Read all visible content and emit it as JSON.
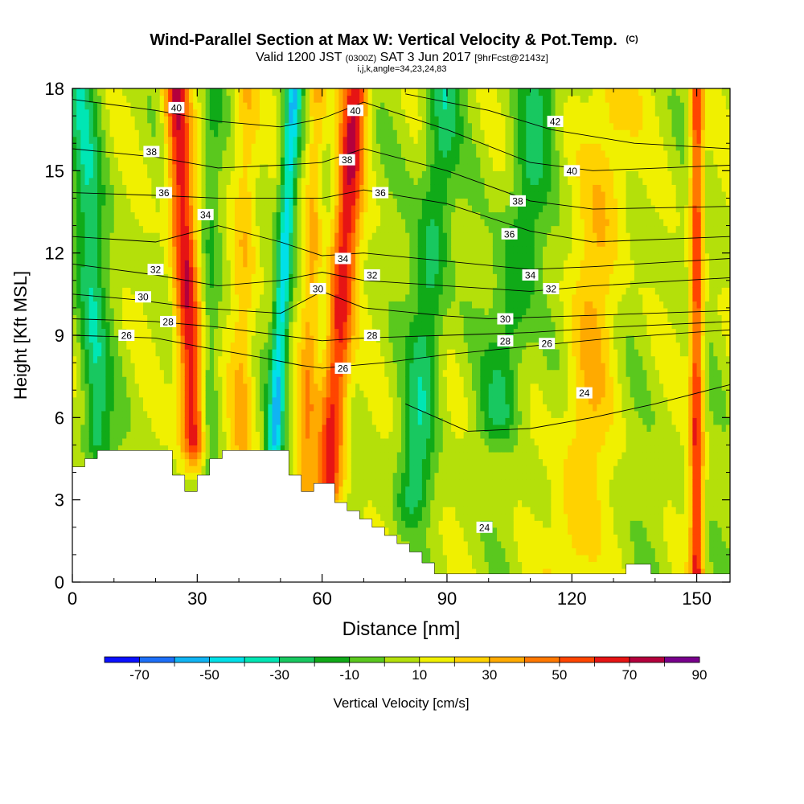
{
  "chart_data": {
    "type": "heatmap",
    "title": "Wind-Parallel Section at Max W: Vertical Velocity & Pot.Temp.",
    "title_mark": "(C)",
    "subtitle_parts": [
      "Valid 1200 JST ",
      "(0300Z)",
      " SAT 3 Jun 2017 ",
      "[9hrFcst@2143z]"
    ],
    "subtitle2": "i,j,k,angle=34,23,24,83",
    "xlabel": "Distance [nm]",
    "ylabel": "Height [Kft MSL]",
    "xlim": [
      0,
      158
    ],
    "ylim": [
      0,
      18
    ],
    "xticks": [
      0,
      30,
      60,
      90,
      120,
      150
    ],
    "yticks": [
      0,
      3,
      6,
      9,
      12,
      15,
      18
    ],
    "colorbar": {
      "label": "Vertical Velocity [cm/s]",
      "ticks": [
        -70,
        -50,
        -30,
        -10,
        10,
        30,
        50,
        70,
        90
      ],
      "bins": [
        -80,
        -70,
        -60,
        -50,
        -40,
        -30,
        -20,
        -10,
        0,
        10,
        20,
        30,
        40,
        50,
        60,
        70,
        80,
        90
      ],
      "colors": [
        "#0a10ff",
        "#1d6ff8",
        "#10b4f3",
        "#00e0e8",
        "#00e6b4",
        "#18c860",
        "#10aa18",
        "#5ac81e",
        "#b4e00a",
        "#f0f000",
        "#ffd200",
        "#ffaa00",
        "#ff7800",
        "#ff4500",
        "#e61414",
        "#b4003c",
        "#78008c"
      ]
    },
    "updrafts": [
      {
        "x": 28,
        "w": 3.0,
        "amp": 65,
        "tilt": -0.35,
        "zmin": 5.0
      },
      {
        "x": 64,
        "w": 3.2,
        "amp": 60,
        "tilt": 0.45,
        "zmin": 3.5
      },
      {
        "x": 57,
        "w": 2.2,
        "amp": 28,
        "tilt": 0.2,
        "zmin": 3.5
      },
      {
        "x": 41,
        "w": 3.0,
        "amp": 25,
        "tilt": 0.1,
        "zmin": 5.0
      },
      {
        "x": 125,
        "w": 6.0,
        "amp": 22,
        "tilt": 0.6,
        "zmin": 0.5
      },
      {
        "x": 150,
        "w": 1.6,
        "amp": 55,
        "tilt": 0.0,
        "zmin": 0.3
      }
    ],
    "downdrafts": [
      {
        "x": 50,
        "w": 2.0,
        "amp": -55,
        "tilt": 0.35,
        "zmin": 5.0
      },
      {
        "x": 5,
        "w": 3.5,
        "amp": -32,
        "tilt": -0.3,
        "zmin": 5.0
      },
      {
        "x": 85,
        "w": 4.0,
        "amp": -30,
        "tilt": 0.5,
        "zmin": 3.0
      },
      {
        "x": 105,
        "w": 5.0,
        "amp": -25,
        "tilt": 0.8,
        "zmin": 6.0
      },
      {
        "x": 33,
        "w": 2.5,
        "amp": -20,
        "tilt": 0.1,
        "zmin": 3.5
      }
    ],
    "terrain": [
      [
        0,
        4.2
      ],
      [
        3,
        4.2
      ],
      [
        3,
        4.5
      ],
      [
        6,
        4.5
      ],
      [
        6,
        4.8
      ],
      [
        24,
        4.8
      ],
      [
        24,
        3.9
      ],
      [
        27,
        3.9
      ],
      [
        27,
        3.3
      ],
      [
        30,
        3.3
      ],
      [
        30,
        3.9
      ],
      [
        33,
        3.9
      ],
      [
        33,
        4.5
      ],
      [
        36,
        4.5
      ],
      [
        36,
        4.8
      ],
      [
        52,
        4.8
      ],
      [
        52,
        3.9
      ],
      [
        55,
        3.9
      ],
      [
        55,
        3.3
      ],
      [
        58,
        3.3
      ],
      [
        58,
        3.6
      ],
      [
        63,
        3.6
      ],
      [
        63,
        2.9
      ],
      [
        66,
        2.9
      ],
      [
        66,
        2.6
      ],
      [
        69,
        2.6
      ],
      [
        69,
        2.3
      ],
      [
        72,
        2.3
      ],
      [
        72,
        2.0
      ],
      [
        75,
        2.0
      ],
      [
        75,
        1.7
      ],
      [
        78,
        1.7
      ],
      [
        78,
        1.4
      ],
      [
        81,
        1.4
      ],
      [
        81,
        1.1
      ],
      [
        84,
        1.1
      ],
      [
        84,
        0.7
      ],
      [
        87,
        0.7
      ],
      [
        87,
        0.3
      ],
      [
        133,
        0.3
      ],
      [
        133,
        0.65
      ],
      [
        139,
        0.65
      ],
      [
        139,
        0.3
      ],
      [
        158,
        0.3
      ]
    ],
    "theta_lines": [
      {
        "label": "24",
        "pts": [
          [
            80,
            6.5
          ],
          [
            95,
            5.5
          ],
          [
            110,
            5.6
          ],
          [
            125,
            6.0
          ],
          [
            140,
            6.5
          ],
          [
            158,
            7.2
          ]
        ]
      },
      {
        "label": "26",
        "pts": [
          [
            0,
            9.0
          ],
          [
            20,
            8.9
          ],
          [
            30,
            8.6
          ],
          [
            45,
            8.2
          ],
          [
            55,
            7.9
          ],
          [
            60,
            7.8
          ],
          [
            75,
            8.0
          ],
          [
            90,
            8.3
          ],
          [
            110,
            8.6
          ],
          [
            130,
            8.9
          ],
          [
            158,
            9.2
          ]
        ]
      },
      {
        "label": "28",
        "pts": [
          [
            0,
            9.6
          ],
          [
            20,
            9.5
          ],
          [
            35,
            9.3
          ],
          [
            50,
            9.0
          ],
          [
            60,
            8.8
          ],
          [
            70,
            8.9
          ],
          [
            90,
            9.0
          ],
          [
            110,
            9.1
          ],
          [
            130,
            9.3
          ],
          [
            158,
            9.5
          ]
        ]
      },
      {
        "label": "30",
        "pts": [
          [
            0,
            10.5
          ],
          [
            15,
            10.3
          ],
          [
            30,
            10.0
          ],
          [
            50,
            9.8
          ],
          [
            60,
            10.6
          ],
          [
            70,
            10.0
          ],
          [
            90,
            9.7
          ],
          [
            100,
            9.6
          ],
          [
            120,
            9.7
          ],
          [
            158,
            9.9
          ]
        ]
      },
      {
        "label": "32",
        "pts": [
          [
            0,
            11.6
          ],
          [
            20,
            11.2
          ],
          [
            35,
            10.8
          ],
          [
            50,
            11.0
          ],
          [
            60,
            11.3
          ],
          [
            70,
            11.0
          ],
          [
            90,
            10.8
          ],
          [
            110,
            10.6
          ],
          [
            125,
            10.8
          ],
          [
            158,
            11.1
          ]
        ]
      },
      {
        "label": "34",
        "pts": [
          [
            0,
            12.6
          ],
          [
            20,
            12.4
          ],
          [
            35,
            13.0
          ],
          [
            50,
            12.4
          ],
          [
            60,
            11.9
          ],
          [
            70,
            12.0
          ],
          [
            90,
            11.7
          ],
          [
            110,
            11.4
          ],
          [
            125,
            11.5
          ],
          [
            158,
            11.8
          ]
        ]
      },
      {
        "label": "36",
        "pts": [
          [
            0,
            14.2
          ],
          [
            20,
            14.1
          ],
          [
            35,
            14.0
          ],
          [
            50,
            14.0
          ],
          [
            60,
            14.0
          ],
          [
            70,
            14.3
          ],
          [
            90,
            13.8
          ],
          [
            110,
            12.8
          ],
          [
            125,
            12.4
          ],
          [
            158,
            12.6
          ]
        ]
      },
      {
        "label": "38",
        "pts": [
          [
            0,
            15.8
          ],
          [
            20,
            15.5
          ],
          [
            35,
            15.1
          ],
          [
            50,
            15.2
          ],
          [
            60,
            15.3
          ],
          [
            70,
            15.8
          ],
          [
            90,
            15.0
          ],
          [
            110,
            13.9
          ],
          [
            125,
            13.6
          ],
          [
            158,
            13.7
          ]
        ]
      },
      {
        "label": "40",
        "pts": [
          [
            0,
            17.6
          ],
          [
            20,
            17.2
          ],
          [
            35,
            16.8
          ],
          [
            50,
            16.6
          ],
          [
            60,
            16.9
          ],
          [
            70,
            17.5
          ],
          [
            90,
            16.5
          ],
          [
            110,
            15.3
          ],
          [
            125,
            15.0
          ],
          [
            158,
            15.2
          ]
        ]
      },
      {
        "label": "42",
        "pts": [
          [
            80,
            17.8
          ],
          [
            100,
            17.2
          ],
          [
            115,
            16.5
          ],
          [
            135,
            16.0
          ],
          [
            158,
            15.8
          ]
        ]
      }
    ],
    "theta_labels": [
      {
        "text": "40",
        "x": 25,
        "y": 17.3
      },
      {
        "text": "40",
        "x": 68,
        "y": 17.2
      },
      {
        "text": "42",
        "x": 116,
        "y": 16.8
      },
      {
        "text": "38",
        "x": 19,
        "y": 15.7
      },
      {
        "text": "38",
        "x": 66,
        "y": 15.4
      },
      {
        "text": "40",
        "x": 120,
        "y": 15.0
      },
      {
        "text": "36",
        "x": 22,
        "y": 14.2
      },
      {
        "text": "36",
        "x": 74,
        "y": 14.2
      },
      {
        "text": "38",
        "x": 107,
        "y": 13.9
      },
      {
        "text": "34",
        "x": 32,
        "y": 13.4
      },
      {
        "text": "36",
        "x": 105,
        "y": 12.7
      },
      {
        "text": "34",
        "x": 65,
        "y": 11.8
      },
      {
        "text": "32",
        "x": 20,
        "y": 11.4
      },
      {
        "text": "32",
        "x": 72,
        "y": 11.2
      },
      {
        "text": "34",
        "x": 110,
        "y": 11.2
      },
      {
        "text": "30",
        "x": 59,
        "y": 10.7
      },
      {
        "text": "32",
        "x": 115,
        "y": 10.7
      },
      {
        "text": "30",
        "x": 17,
        "y": 10.4
      },
      {
        "text": "30",
        "x": 104,
        "y": 9.6
      },
      {
        "text": "28",
        "x": 23,
        "y": 9.5
      },
      {
        "text": "26",
        "x": 13,
        "y": 9.0
      },
      {
        "text": "28",
        "x": 72,
        "y": 9.0
      },
      {
        "text": "28",
        "x": 104,
        "y": 8.8
      },
      {
        "text": "26",
        "x": 114,
        "y": 8.7
      },
      {
        "text": "26",
        "x": 65,
        "y": 7.8
      },
      {
        "text": "24",
        "x": 123,
        "y": 6.9
      },
      {
        "text": "24",
        "x": 99,
        "y": 2.0
      }
    ]
  }
}
